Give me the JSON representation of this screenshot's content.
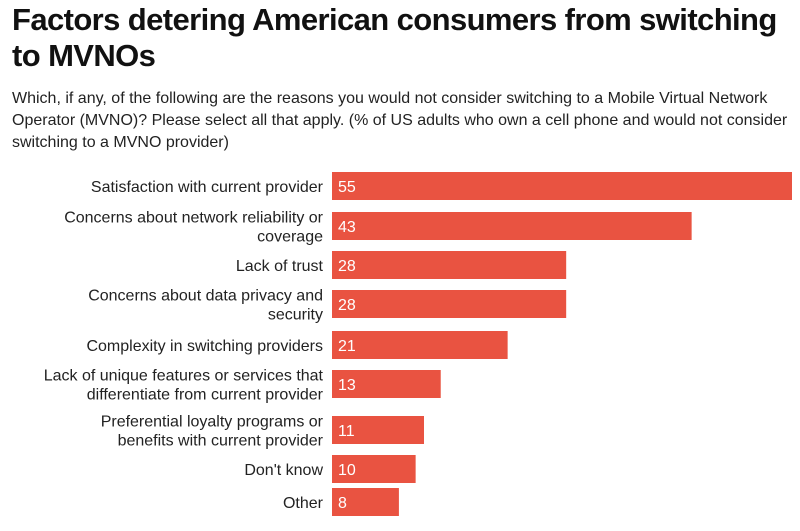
{
  "chart_data": {
    "type": "bar",
    "orientation": "horizontal",
    "title": "Factors detering American consumers from switching to MVNOs",
    "subtitle": "Which, if any, of the following are the reasons you would not consider switching to a Mobile Virtual Network Operator (MVNO)? Please select all that apply. (% of US adults who own a cell phone and would not consider switching to a MVNO provider)",
    "categories": [
      "Satisfaction with current provider",
      "Concerns about network reliability or coverage",
      "Lack of trust",
      "Concerns about data privacy and security",
      "Complexity in switching providers",
      "Lack of unique features or services that differentiate from current provider",
      "Preferential loyalty programs or benefits with current provider",
      "Don't know",
      "Other"
    ],
    "values": [
      55,
      43,
      28,
      28,
      21,
      13,
      11,
      10,
      8
    ],
    "xlim": [
      0,
      55
    ],
    "xlabel": "",
    "ylabel": "",
    "grid": false,
    "legend": "none",
    "bar_color": "#E95341"
  }
}
